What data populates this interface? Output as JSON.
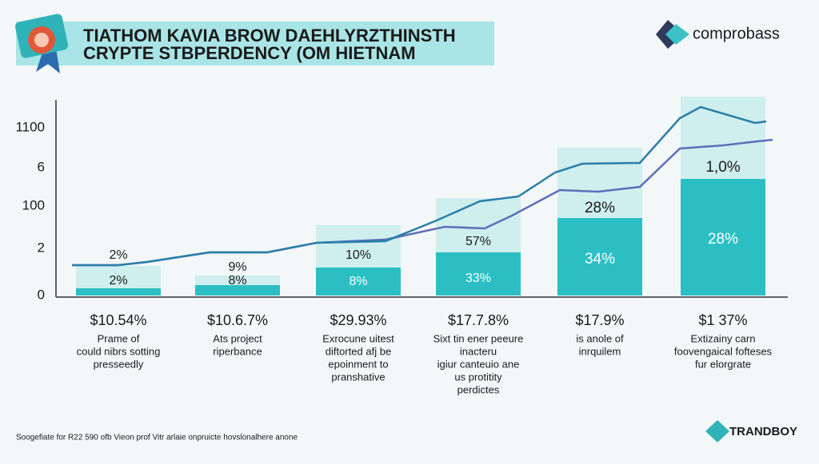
{
  "header": {
    "title_lines": [
      "TIATHOM KAVIA BROW DAEHLYRZTHINSTH",
      "CRYPTE STBPERDENCY (OM HIETNAM"
    ],
    "brand": "comprobass"
  },
  "axis_labels": [
    "1100",
    "6",
    "100",
    "2",
    "0"
  ],
  "columns": [
    {
      "top_label": "2%",
      "inner_label": "2%",
      "price": "$10.54%",
      "description": [
        "Prame of",
        "could nibrs sotting",
        "presseedly"
      ]
    },
    {
      "top_label": "9%",
      "inner_label": "8%",
      "price": "$10.6.7%",
      "description": [
        "Ats project",
        "riperbance"
      ]
    },
    {
      "top_label": "10%",
      "inner_label": "8%",
      "price": "$29.93%",
      "description": [
        "Exrocune uitest",
        "diftorted afj be",
        "epoinment to",
        "pranshative"
      ]
    },
    {
      "top_label": "57%",
      "inner_label": "33%",
      "price": "$17.7.8%",
      "description": [
        "Sixt tin ener peeure",
        "inacteru",
        "igiur canteuio ane",
        "us protitity",
        "perdictes"
      ]
    },
    {
      "top_label": "28%",
      "inner_label": "34%",
      "price": "$17.9%",
      "description": [
        "is anole of",
        "inrquilem"
      ]
    },
    {
      "top_label": "1,0%",
      "inner_label": "28%",
      "price": "$1 37%",
      "description": [
        "Extizainy carn",
        "foovengaical fofteses",
        "fur elorgrate"
      ]
    }
  ],
  "footer": {
    "source": "Soogefiate for R22 590 ofb Vieon prof Vitr arlaie onpruicte hovslonalhere anone",
    "brand": "TRANDBOY"
  }
}
